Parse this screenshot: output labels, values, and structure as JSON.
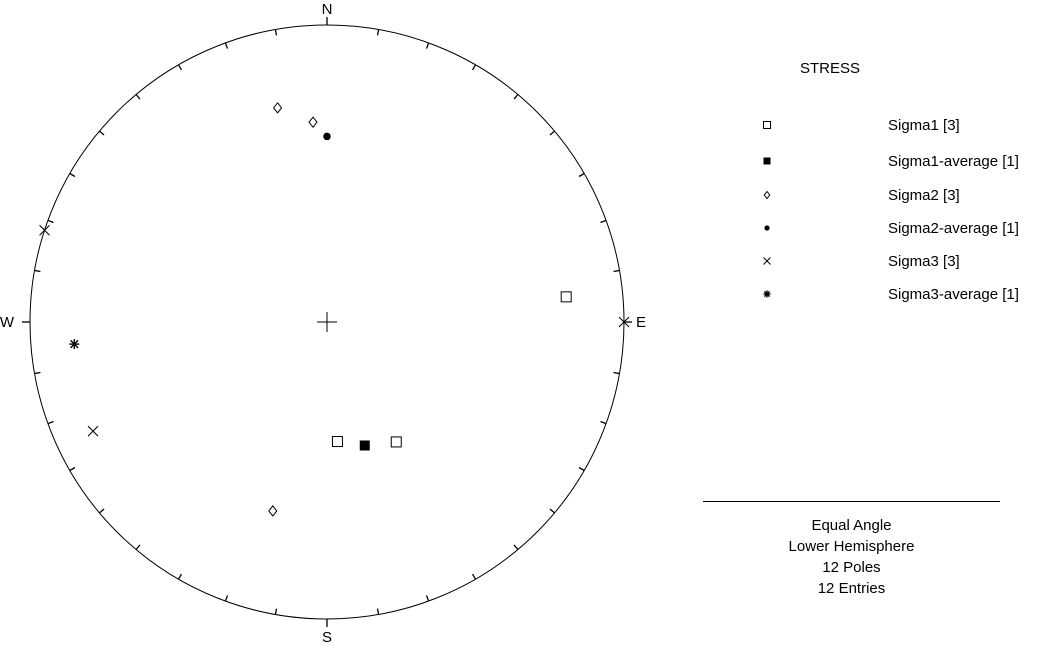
{
  "chart_data": {
    "type": "stereonet",
    "title": "STRESS",
    "directions": {
      "north": "N",
      "south": "S",
      "east": "E",
      "west": "W"
    },
    "series": [
      {
        "name": "Sigma1 [3]",
        "symbol": "open-square",
        "points": [
          {
            "trend": 84,
            "plunge": 12
          },
          {
            "trend": 175,
            "plunge": 46
          },
          {
            "trend": 150,
            "plunge": 40
          }
        ]
      },
      {
        "name": "Sigma1-average [1]",
        "symbol": "filled-square",
        "points": [
          {
            "trend": 163,
            "plunge": 43
          }
        ]
      },
      {
        "name": "Sigma2 [3]",
        "symbol": "open-diamond",
        "points": [
          {
            "trend": 347,
            "plunge": 17
          },
          {
            "trend": 356,
            "plunge": 22
          },
          {
            "trend": 196,
            "plunge": 23
          }
        ]
      },
      {
        "name": "Sigma2-average [1]",
        "symbol": "filled-circle",
        "points": [
          {
            "trend": 0,
            "plunge": 26
          }
        ]
      },
      {
        "name": "Sigma3 [3]",
        "symbol": "x",
        "points": [
          {
            "trend": 288,
            "plunge": 0
          },
          {
            "trend": 90,
            "plunge": 0
          },
          {
            "trend": 245,
            "plunge": 8
          }
        ]
      },
      {
        "name": "Sigma3-average [1]",
        "symbol": "asterisk",
        "points": [
          {
            "trend": 265,
            "plunge": 9
          }
        ]
      }
    ],
    "info": [
      "Equal Angle",
      "Lower Hemisphere",
      "12 Poles",
      "12 Entries"
    ]
  }
}
